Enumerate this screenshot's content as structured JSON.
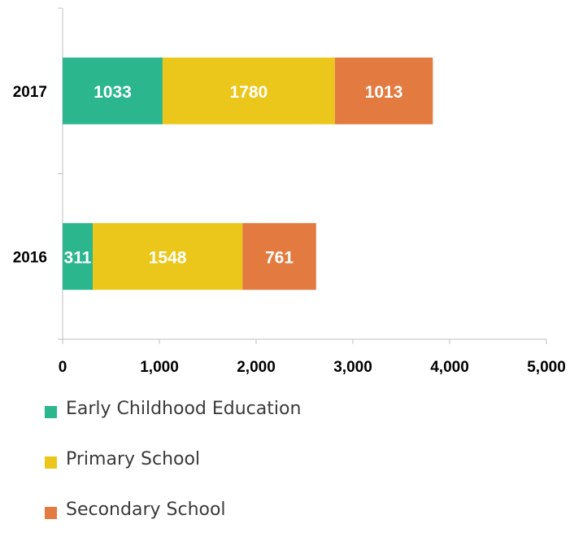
{
  "chart_data": {
    "type": "bar",
    "orientation": "horizontal",
    "stacked": true,
    "categories": [
      "2017",
      "2016"
    ],
    "series": [
      {
        "name": "Early Childhood Education",
        "color": "#2bb68e",
        "values": [
          1033,
          311
        ]
      },
      {
        "name": "Primary School",
        "color": "#ebc71c",
        "values": [
          1780,
          1548
        ]
      },
      {
        "name": "Secondary School",
        "color": "#e37b40",
        "values": [
          1013,
          761
        ]
      }
    ],
    "xlim": [
      0,
      5000
    ],
    "xticks": [
      0,
      1000,
      2000,
      3000,
      4000,
      5000
    ],
    "xtick_labels": [
      "0",
      "1,000",
      "2,000",
      "3,000",
      "4,000",
      "5,000"
    ],
    "grid": false,
    "legend_position": "bottom-left"
  },
  "title_fragment": "",
  "title_color": "#1bb3d9"
}
